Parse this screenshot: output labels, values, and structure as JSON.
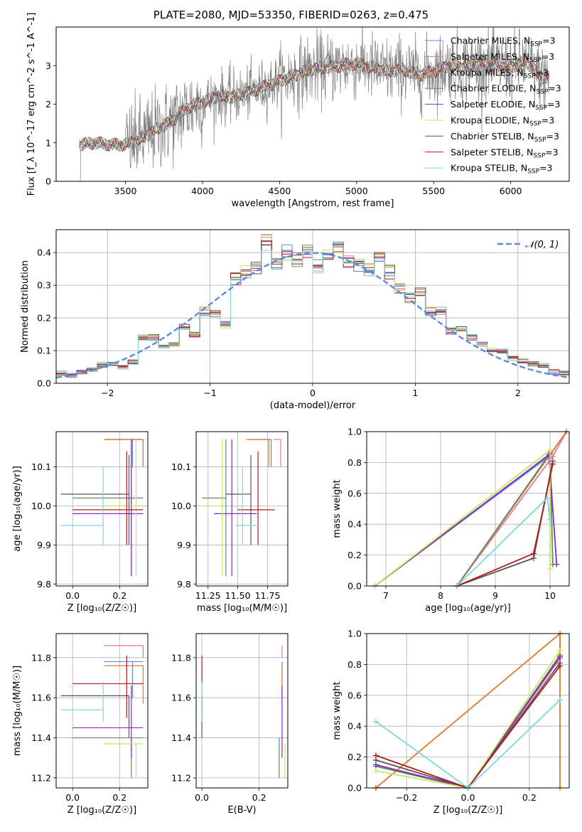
{
  "figure": {
    "title": "PLATE=2080, MJD=53350, FIBERID=0263, z=0.475"
  },
  "chart_data": [
    {
      "id": "spectrum",
      "type": "line",
      "xlabel": "wavelength [Angstrom, rest frame]",
      "ylabel": "Flux [f_λ 10^-17 erg cm^-2 s^-1 A^-1]",
      "xlim": [
        3050,
        6380
      ],
      "ylim": [
        0,
        4
      ],
      "xticks": [
        3500,
        4000,
        4500,
        5000,
        5500,
        6000
      ],
      "yticks": [
        0,
        1,
        2,
        3
      ],
      "grid": false,
      "legend_position": "right",
      "data_continuum": {
        "x": [
          3200,
          3300,
          3400,
          3500,
          3600,
          3700,
          3800,
          3900,
          4000,
          4100,
          4200,
          4300,
          4400,
          4500,
          4600,
          4700,
          4800,
          4900,
          5000,
          5100,
          5200,
          5300,
          5400,
          5500,
          5600,
          5700,
          5800,
          5900,
          6000,
          6100,
          6200
        ],
        "y": [
          0.95,
          1.0,
          0.95,
          0.95,
          1.1,
          1.35,
          1.55,
          1.9,
          2.05,
          2.2,
          2.2,
          2.3,
          2.45,
          2.6,
          2.75,
          2.9,
          2.95,
          3.0,
          3.05,
          2.95,
          2.85,
          2.9,
          2.75,
          2.85,
          3.0,
          2.95,
          3.05,
          3.0,
          2.95,
          3.1,
          2.7
        ]
      },
      "series": [
        {
          "name": "Chabrier MILES, N_SSP=3",
          "color": "#5b8bd9"
        },
        {
          "name": "Salpeter MILES, N_SSP=3",
          "color": "#e8739f"
        },
        {
          "name": "Kroupa MILES, N_SSP=3",
          "color": "#e07a2a"
        },
        {
          "name": "Chabrier ELODIE, N_SSP=3",
          "color": "#5f8f5f"
        },
        {
          "name": "Salpeter ELODIE, N_SSP=3",
          "color": "#8a2bb5"
        },
        {
          "name": "Kroupa ELODIE, N_SSP=3",
          "color": "#c8e65a"
        },
        {
          "name": "Chabrier STELIB, N_SSP=3",
          "color": "#555555"
        },
        {
          "name": "Salpeter STELIB, N_SSP=3",
          "color": "#b01a1a"
        },
        {
          "name": "Kroupa STELIB, N_SSP=3",
          "color": "#7fd6dd"
        }
      ]
    },
    {
      "id": "residuals",
      "type": "line",
      "xlabel": "(data-model)/error",
      "ylabel": "Normed distribution",
      "xlim": [
        -2.5,
        2.5
      ],
      "ylim": [
        0,
        0.47
      ],
      "xticks": [
        -2,
        -1,
        0,
        1,
        2
      ],
      "yticks": [
        0.0,
        0.1,
        0.2,
        0.3,
        0.4
      ],
      "grid": true,
      "legend_position": "top-right",
      "gaussian_label": "𝒩(0, 1)",
      "gaussian_color": "#5b8bd9",
      "hist_bins": [
        -2.45,
        -2.35,
        -2.25,
        -2.15,
        -2.05,
        -1.95,
        -1.85,
        -1.75,
        -1.65,
        -1.55,
        -1.45,
        -1.35,
        -1.25,
        -1.15,
        -1.05,
        -0.95,
        -0.85,
        -0.75,
        -0.65,
        -0.55,
        -0.45,
        -0.35,
        -0.25,
        -0.15,
        -0.05,
        0.05,
        0.15,
        0.25,
        0.35,
        0.45,
        0.55,
        0.65,
        0.75,
        0.85,
        0.95,
        1.05,
        1.15,
        1.25,
        1.35,
        1.45,
        1.55,
        1.65,
        1.75,
        1.85,
        1.95,
        2.05,
        2.15,
        2.25,
        2.35,
        2.45
      ],
      "hist_base": [
        0.03,
        0.025,
        0.035,
        0.04,
        0.055,
        0.06,
        0.05,
        0.065,
        0.14,
        0.14,
        0.11,
        0.12,
        0.17,
        0.15,
        0.22,
        0.21,
        0.18,
        0.32,
        0.34,
        0.35,
        0.43,
        0.36,
        0.4,
        0.38,
        0.4,
        0.36,
        0.4,
        0.42,
        0.37,
        0.36,
        0.35,
        0.38,
        0.34,
        0.29,
        0.26,
        0.28,
        0.22,
        0.22,
        0.16,
        0.17,
        0.14,
        0.12,
        0.1,
        0.1,
        0.075,
        0.07,
        0.06,
        0.055,
        0.035,
        0.03
      ]
    },
    {
      "id": "age_vs_Z",
      "type": "scatter",
      "xlabel": "Z [log₁₀(Z/Z☉)]",
      "ylabel": "age  [log₁₀(age/yr)]",
      "xlim": [
        -0.07,
        0.32
      ],
      "ylim": [
        9.795,
        10.19
      ],
      "xticks": [
        0.0,
        0.2
      ],
      "yticks": [
        9.8,
        9.9,
        10.0,
        10.1
      ],
      "grid": true
    },
    {
      "id": "age_vs_mass",
      "type": "scatter",
      "xlabel": "mass [log₁₀(M/M☉)]",
      "xlim": [
        11.15,
        11.92
      ],
      "ylim": [
        9.795,
        10.19
      ],
      "xticks": [
        11.25,
        11.5,
        11.75
      ],
      "yticks": [
        9.8,
        9.9,
        10.0,
        10.1
      ],
      "grid": true
    },
    {
      "id": "weight_vs_age",
      "type": "line",
      "xlabel": "age  [log₁₀(age/yr)]",
      "ylabel": "mass weight",
      "xlim": [
        6.65,
        10.35
      ],
      "ylim": [
        0,
        1
      ],
      "xticks": [
        7,
        8,
        9,
        10
      ],
      "yticks": [
        0.0,
        0.2,
        0.4,
        0.6,
        0.8,
        1.0
      ],
      "grid": true
    },
    {
      "id": "mass_vs_Z",
      "type": "scatter",
      "xlabel": "Z [log₁₀(Z/Z☉)]",
      "ylabel": "mass [log₁₀(M/M☉)]",
      "xlim": [
        -0.07,
        0.32
      ],
      "ylim": [
        11.15,
        11.92
      ],
      "xticks": [
        0.0,
        0.2
      ],
      "yticks": [
        11.2,
        11.4,
        11.6,
        11.8
      ],
      "grid": true
    },
    {
      "id": "mass_vs_ebv",
      "type": "scatter",
      "xlabel": "E(B-V)",
      "xlim": [
        -0.02,
        0.3
      ],
      "ylim": [
        11.15,
        11.92
      ],
      "xticks": [
        0.0,
        0.2
      ],
      "yticks": [
        11.2,
        11.4,
        11.6,
        11.8
      ],
      "grid": true
    },
    {
      "id": "weight_vs_Z",
      "type": "line",
      "xlabel": "Z [log₁₀(Z/Z☉)]",
      "ylabel": "mass weight",
      "xlim": [
        -0.33,
        0.33
      ],
      "ylim": [
        0,
        1
      ],
      "xticks": [
        -0.2,
        0.0,
        0.2
      ],
      "yticks": [
        0.0,
        0.2,
        0.4,
        0.6,
        0.8,
        1.0
      ],
      "grid": true
    }
  ],
  "model_results": [
    {
      "name": "Chabrier MILES",
      "color": "#5b8bd9",
      "Z": 0.255,
      "Zlo": 0.135,
      "Zhi": 0.3,
      "age": 10.17,
      "agelo": 10.1,
      "agehi": 10.17,
      "mass": 11.78,
      "masslo": 11.6,
      "masshi": 11.78,
      "ebv": 0.28,
      "ebvlo": 0.28,
      "ebvhi": 0.28,
      "wa": [
        [
          6.8,
          0.0
        ],
        [
          9.98,
          0.84
        ],
        [
          10.3,
          1.0
        ]
      ],
      "wz": [
        [
          -0.3,
          0.0
        ],
        [
          0.0,
          0.0
        ],
        [
          0.3,
          0.84
        ],
        [
          0.3,
          1.0
        ]
      ]
    },
    {
      "name": "Salpeter MILES",
      "color": "#e8739f",
      "Z": 0.3,
      "Zlo": 0.135,
      "Zhi": 0.3,
      "age": 10.17,
      "agelo": 10.1,
      "agehi": 10.17,
      "mass": 11.86,
      "masslo": 11.8,
      "masshi": 11.86,
      "ebv": 0.28,
      "ebvlo": 0.28,
      "ebvhi": 0.28,
      "wa": [
        [
          8.3,
          0.0
        ],
        [
          10.05,
          0.84
        ],
        [
          10.3,
          1.0
        ]
      ],
      "wz": [
        [
          -0.3,
          0.0
        ],
        [
          0.0,
          0.0
        ],
        [
          0.3,
          0.84
        ],
        [
          0.3,
          1.0
        ]
      ]
    },
    {
      "name": "Kroupa MILES",
      "color": "#e07a2a",
      "Z": 0.3,
      "Zlo": 0.135,
      "Zhi": 0.3,
      "age": 10.17,
      "agelo": 10.1,
      "agehi": 10.17,
      "mass": 11.76,
      "masslo": 11.57,
      "masshi": 11.76,
      "ebv": 0.28,
      "ebvlo": 0.28,
      "ebvhi": 0.28,
      "wa": [
        [
          8.3,
          0.0
        ],
        [
          10.3,
          1.0
        ]
      ],
      "wz": [
        [
          -0.3,
          0.0
        ],
        [
          0.3,
          1.0
        ],
        [
          0.3,
          0.0
        ]
      ]
    },
    {
      "name": "Chabrier ELODIE",
      "color": "#5f8f5f",
      "Z": 0.25,
      "Zlo": 0.0,
      "Zhi": 0.3,
      "age": 10.02,
      "agelo": 9.82,
      "agehi": 10.17,
      "mass": 11.4,
      "masslo": 11.2,
      "masshi": 11.4,
      "ebv": 0.27,
      "ebvlo": 0.27,
      "ebvhi": 0.27,
      "wa": [
        [
          8.3,
          0.0
        ],
        [
          10.0,
          0.86
        ],
        [
          10.05,
          0.14
        ]
      ],
      "wz": [
        [
          -0.3,
          0.14
        ],
        [
          0.0,
          0.0
        ],
        [
          0.3,
          0.86
        ]
      ]
    },
    {
      "name": "Salpeter ELODIE",
      "color": "#8a2bb5",
      "Z": 0.25,
      "Zlo": 0.0,
      "Zhi": 0.3,
      "age": 9.98,
      "agelo": 9.82,
      "agehi": 10.17,
      "mass": 11.45,
      "masslo": 11.3,
      "masshi": 11.66,
      "ebv": 0.28,
      "ebvlo": 0.28,
      "ebvhi": 0.28,
      "wa": [
        [
          6.8,
          0.0
        ],
        [
          9.98,
          0.85
        ],
        [
          10.12,
          0.14
        ]
      ],
      "wz": [
        [
          -0.3,
          0.15
        ],
        [
          0.0,
          0.0
        ],
        [
          0.3,
          0.85
        ]
      ]
    },
    {
      "name": "Kroupa ELODIE",
      "color": "#c8e65a",
      "Z": 0.27,
      "Zlo": 0.13,
      "Zhi": 0.3,
      "age": 10.0,
      "agelo": 9.82,
      "agehi": 10.17,
      "mass": 11.37,
      "masslo": 11.2,
      "masshi": 11.37,
      "ebv": 0.29,
      "ebvlo": 0.29,
      "ebvhi": 0.29,
      "wa": [
        [
          6.8,
          0.0
        ],
        [
          10.0,
          0.88
        ],
        [
          10.0,
          0.11
        ]
      ],
      "wz": [
        [
          -0.3,
          0.11
        ],
        [
          0.0,
          0.0
        ],
        [
          0.3,
          0.89
        ]
      ]
    },
    {
      "name": "Chabrier STELIB",
      "color": "#555555",
      "Z": 0.24,
      "Zlo": -0.05,
      "Zhi": 0.24,
      "age": 10.03,
      "agelo": 9.9,
      "agehi": 10.13,
      "mass": 11.61,
      "masslo": 11.4,
      "masshi": 11.61,
      "ebv": 0.0,
      "ebvlo": 0.0,
      "ebvhi": 0.0,
      "wa": [
        [
          8.3,
          0.0
        ],
        [
          9.7,
          0.18
        ],
        [
          10.05,
          0.81
        ]
      ],
      "wz": [
        [
          -0.3,
          0.18
        ],
        [
          0.0,
          0.0
        ],
        [
          0.3,
          0.81
        ]
      ]
    },
    {
      "name": "Salpeter STELIB",
      "color": "#b01a1a",
      "Z": 0.23,
      "Zlo": 0.0,
      "Zhi": 0.3,
      "age": 9.99,
      "agelo": 9.9,
      "agehi": 10.14,
      "mass": 11.67,
      "masslo": 11.5,
      "masshi": 11.81,
      "ebv": 0.0,
      "ebvlo": 0.0,
      "ebvhi": 0.0,
      "wa": [
        [
          8.3,
          0.0
        ],
        [
          9.7,
          0.21
        ],
        [
          10.05,
          0.79
        ]
      ],
      "wz": [
        [
          -0.3,
          0.21
        ],
        [
          0.0,
          0.0
        ],
        [
          0.3,
          0.79
        ]
      ]
    },
    {
      "name": "Kroupa STELIB",
      "color": "#7fd6dd",
      "Z": 0.13,
      "Zlo": -0.05,
      "Zhi": 0.13,
      "age": 9.95,
      "agelo": 9.9,
      "agehi": 10.1,
      "mass": 11.54,
      "masslo": 11.48,
      "masshi": 11.68,
      "ebv": 0.0,
      "ebvlo": 0.0,
      "ebvhi": 0.0,
      "wa": [
        [
          8.3,
          0.0
        ],
        [
          9.95,
          0.57
        ],
        [
          10.0,
          0.43
        ]
      ],
      "wz": [
        [
          -0.3,
          0.43
        ],
        [
          0.0,
          0.0
        ],
        [
          0.3,
          0.57
        ]
      ]
    }
  ]
}
